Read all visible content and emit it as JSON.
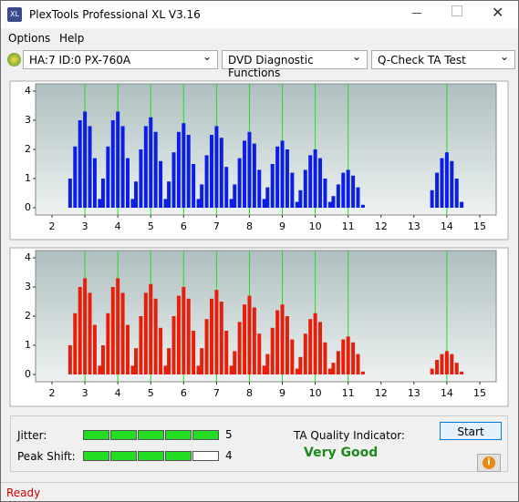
{
  "window": {
    "title": "PlexTools Professional XL V3.16"
  },
  "menu": [
    "Options",
    "Help"
  ],
  "toolbar": {
    "drive": "HA:7 ID:0  PX-760A",
    "function": "DVD Diagnostic Functions",
    "test": "Q-Check TA Test"
  },
  "chart_data": [
    {
      "type": "bar",
      "color": "#0a1ee6",
      "marker_color": "#22dd22",
      "xlim": [
        1.5,
        15.5
      ],
      "ylim": [
        -0.25,
        4.25
      ],
      "xticks": [
        2,
        3,
        4,
        5,
        6,
        7,
        8,
        9,
        10,
        11,
        12,
        13,
        14,
        15
      ],
      "yticks": [
        0,
        1,
        2,
        3,
        4
      ],
      "markers": [
        3,
        4,
        5,
        6,
        7,
        8,
        9,
        10,
        11,
        14
      ],
      "x": [
        2.55,
        2.7,
        2.85,
        3,
        3.15,
        3.3,
        3.45,
        3.55,
        3.7,
        3.85,
        4,
        4.15,
        4.3,
        4.45,
        4.55,
        4.7,
        4.85,
        5,
        5.15,
        5.3,
        5.45,
        5.55,
        5.7,
        5.85,
        6,
        6.15,
        6.3,
        6.45,
        6.55,
        6.7,
        6.85,
        7,
        7.15,
        7.3,
        7.45,
        7.55,
        7.7,
        7.85,
        8,
        8.15,
        8.3,
        8.45,
        8.55,
        8.7,
        8.85,
        9,
        9.15,
        9.3,
        9.45,
        9.55,
        9.7,
        9.85,
        10,
        10.15,
        10.3,
        10.45,
        10.55,
        10.7,
        10.85,
        11,
        11.15,
        11.3,
        11.45,
        13.55,
        13.7,
        13.85,
        14,
        14.15,
        14.3,
        14.45
      ],
      "values": [
        1.0,
        2.1,
        3.0,
        3.3,
        2.8,
        1.7,
        0.3,
        1.0,
        2.1,
        3.0,
        3.3,
        2.8,
        1.7,
        0.3,
        0.9,
        2.0,
        2.8,
        3.1,
        2.6,
        1.6,
        0.3,
        0.9,
        1.9,
        2.6,
        2.9,
        2.5,
        1.5,
        0.3,
        0.8,
        1.8,
        2.5,
        2.8,
        2.4,
        1.4,
        0.3,
        0.8,
        1.7,
        2.3,
        2.6,
        2.2,
        1.3,
        0.3,
        0.7,
        1.5,
        2.1,
        2.3,
        2.0,
        1.2,
        0.2,
        0.6,
        1.3,
        1.8,
        2.0,
        1.7,
        1.0,
        0.2,
        0.4,
        0.8,
        1.2,
        1.3,
        1.1,
        0.7,
        0.1,
        0.6,
        1.2,
        1.7,
        1.9,
        1.6,
        1.0,
        0.2
      ]
    },
    {
      "type": "bar",
      "color": "#e61e0a",
      "marker_color": "#22dd22",
      "xlim": [
        1.5,
        15.5
      ],
      "ylim": [
        -0.25,
        4.25
      ],
      "xticks": [
        2,
        3,
        4,
        5,
        6,
        7,
        8,
        9,
        10,
        11,
        12,
        13,
        14,
        15
      ],
      "yticks": [
        0,
        1,
        2,
        3,
        4
      ],
      "markers": [
        3,
        4,
        5,
        6,
        7,
        8,
        9,
        10,
        11,
        14
      ],
      "x": [
        2.55,
        2.7,
        2.85,
        3,
        3.15,
        3.3,
        3.45,
        3.55,
        3.7,
        3.85,
        4,
        4.15,
        4.3,
        4.45,
        4.55,
        4.7,
        4.85,
        5,
        5.15,
        5.3,
        5.45,
        5.55,
        5.7,
        5.85,
        6,
        6.15,
        6.3,
        6.45,
        6.55,
        6.7,
        6.85,
        7,
        7.15,
        7.3,
        7.45,
        7.55,
        7.7,
        7.85,
        8,
        8.15,
        8.3,
        8.45,
        8.55,
        8.7,
        8.85,
        9,
        9.15,
        9.3,
        9.45,
        9.55,
        9.7,
        9.85,
        10,
        10.15,
        10.3,
        10.45,
        10.55,
        10.7,
        10.85,
        11,
        11.15,
        11.3,
        11.45,
        13.55,
        13.7,
        13.85,
        14,
        14.15,
        14.3,
        14.45
      ],
      "values": [
        1.0,
        2.1,
        3.0,
        3.3,
        2.8,
        1.7,
        0.3,
        1.0,
        2.1,
        3.0,
        3.3,
        2.8,
        1.7,
        0.3,
        0.9,
        2.0,
        2.8,
        3.1,
        2.6,
        1.6,
        0.3,
        0.9,
        2.0,
        2.7,
        3.0,
        2.6,
        1.5,
        0.3,
        0.9,
        1.9,
        2.6,
        2.9,
        2.5,
        1.5,
        0.3,
        0.8,
        1.8,
        2.4,
        2.7,
        2.3,
        1.4,
        0.3,
        0.7,
        1.6,
        2.2,
        2.4,
        2.0,
        1.2,
        0.2,
        0.6,
        1.4,
        1.9,
        2.1,
        1.8,
        1.1,
        0.2,
        0.4,
        0.8,
        1.2,
        1.3,
        1.1,
        0.7,
        0.1,
        0.2,
        0.5,
        0.7,
        0.8,
        0.7,
        0.4,
        0.1
      ]
    }
  ],
  "results": {
    "jitter_label": "Jitter:",
    "jitter": 5,
    "peak_shift_label": "Peak Shift:",
    "peak_shift": 4,
    "ta_label": "TA Quality Indicator:",
    "ta_value": "Very Good"
  },
  "buttons": {
    "start": "Start"
  },
  "status": "Ready"
}
